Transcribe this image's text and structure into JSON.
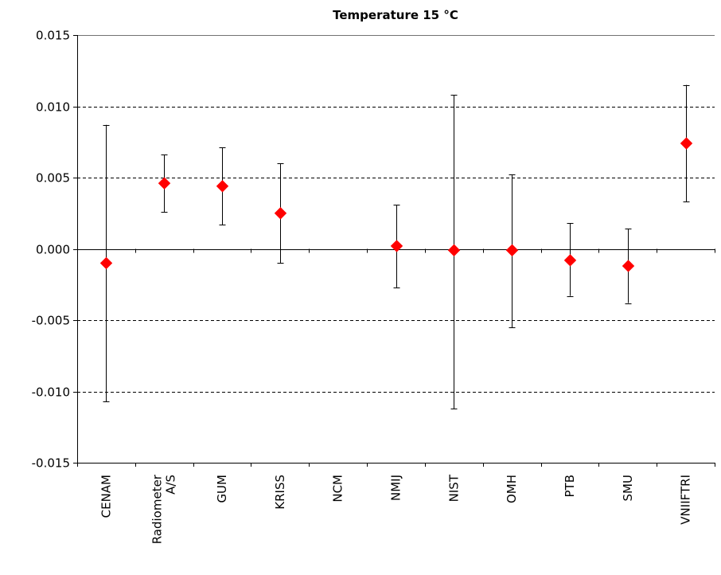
{
  "chart_data": {
    "type": "scatter",
    "title": "Temperature 15 °C",
    "xlabel": "",
    "ylabel": "",
    "ylim": [
      -0.015,
      0.015
    ],
    "yticks": [
      "0.015",
      "0.010",
      "0.005",
      "0.000",
      "-0.005",
      "-0.010",
      "-0.015"
    ],
    "ytick_values": [
      0.015,
      0.01,
      0.005,
      0.0,
      -0.005,
      -0.01,
      -0.015
    ],
    "grid": "dashed horizontal",
    "categories": [
      "CENAM",
      [
        "Radiometer",
        "A/S"
      ],
      "GUM",
      "KRISS",
      "NCM",
      "NMIJ",
      "NIST",
      "OMH",
      "PTB",
      "SMU",
      "VNIIFTRI"
    ],
    "series": [
      {
        "marker": "diamond",
        "color": "#ff0000",
        "values": [
          -0.001,
          0.0046,
          0.0044,
          0.0025,
          null,
          0.0002,
          -0.0001,
          -0.0001,
          -0.0008,
          -0.0012,
          0.0074
        ],
        "error_low": [
          -0.0107,
          0.0026,
          0.0017,
          -0.001,
          null,
          -0.0027,
          -0.0112,
          -0.0055,
          -0.0033,
          -0.0038,
          0.0033
        ],
        "error_high": [
          0.0087,
          0.0066,
          0.0071,
          0.006,
          null,
          0.0031,
          0.0108,
          0.0052,
          0.0018,
          0.0014,
          0.0115
        ]
      }
    ]
  }
}
